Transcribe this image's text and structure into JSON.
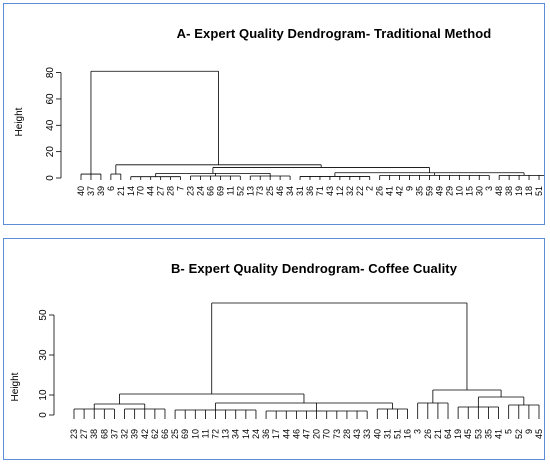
{
  "chart_data": [
    {
      "type": "dendrogram",
      "title": "A- Expert Quality Dendrogram- Traditional Method",
      "ylabel": "Height",
      "ylim": [
        0,
        85
      ],
      "yticks": [
        0,
        20,
        40,
        60,
        80
      ],
      "leaves": [
        "40",
        "37",
        "39",
        "6",
        "21",
        "14",
        "70",
        "44",
        "27",
        "28",
        "7",
        "23",
        "24",
        "66",
        "69",
        "11",
        "52",
        "13",
        "73",
        "25",
        "46",
        "34",
        "31",
        "36",
        "71",
        "43",
        "12",
        "32",
        "22",
        "2",
        "26",
        "41",
        "42",
        "9",
        "35",
        "59",
        "49",
        "29",
        "10",
        "15",
        "30",
        "3",
        "48",
        "38",
        "19",
        "18",
        "51"
      ],
      "merges": [
        {
          "members": [
            0,
            1,
            2
          ],
          "h": 3,
          "parent": 80
        },
        {
          "members": [
            3,
            4
          ],
          "h": 3,
          "parent": 10
        },
        {
          "members": [
            5,
            6,
            7,
            8,
            9,
            10
          ],
          "h": 1,
          "parent": 4
        },
        {
          "members": [
            11,
            12,
            13,
            14,
            15,
            16
          ],
          "h": 1.5,
          "parent": 3.5
        },
        {
          "members": [
            17,
            18,
            19,
            20,
            21
          ],
          "h": 1.5,
          "parent": 3.5
        },
        {
          "members": [
            22,
            23,
            24,
            25,
            26,
            27,
            28,
            29
          ],
          "h": 1.2,
          "parent": 4
        },
        {
          "members": [
            30,
            31,
            32,
            33,
            34,
            35,
            36,
            37,
            38,
            39,
            40,
            41
          ],
          "h": 2,
          "parent": 4
        },
        {
          "members": [
            42,
            43,
            44,
            45,
            46,
            47
          ],
          "h": 2,
          "parent": 4
        }
      ],
      "upper": {
        "top": 81,
        "mid": 10,
        "mid2": 8
      }
    },
    {
      "type": "dendrogram",
      "title": "B- Expert Quality Dendrogram- Coffee Cuality",
      "ylabel": "Height",
      "ylim": [
        0,
        58
      ],
      "yticks": [
        0,
        10,
        30,
        50
      ],
      "leaves": [
        "23",
        "27",
        "38",
        "68",
        "37",
        "32",
        "39",
        "42",
        "62",
        "66",
        "25",
        "69",
        "10",
        "11",
        "72",
        "13",
        "34",
        "14",
        "24",
        "36",
        "17",
        "44",
        "46",
        "47",
        "20",
        "70",
        "73",
        "28",
        "43",
        "33",
        "40",
        "31",
        "51",
        "16",
        "3",
        "26",
        "21",
        "64",
        "19",
        "45",
        "53",
        "35",
        "41",
        "5",
        "52",
        "9",
        "45"
      ],
      "top_merge": 56
    }
  ]
}
